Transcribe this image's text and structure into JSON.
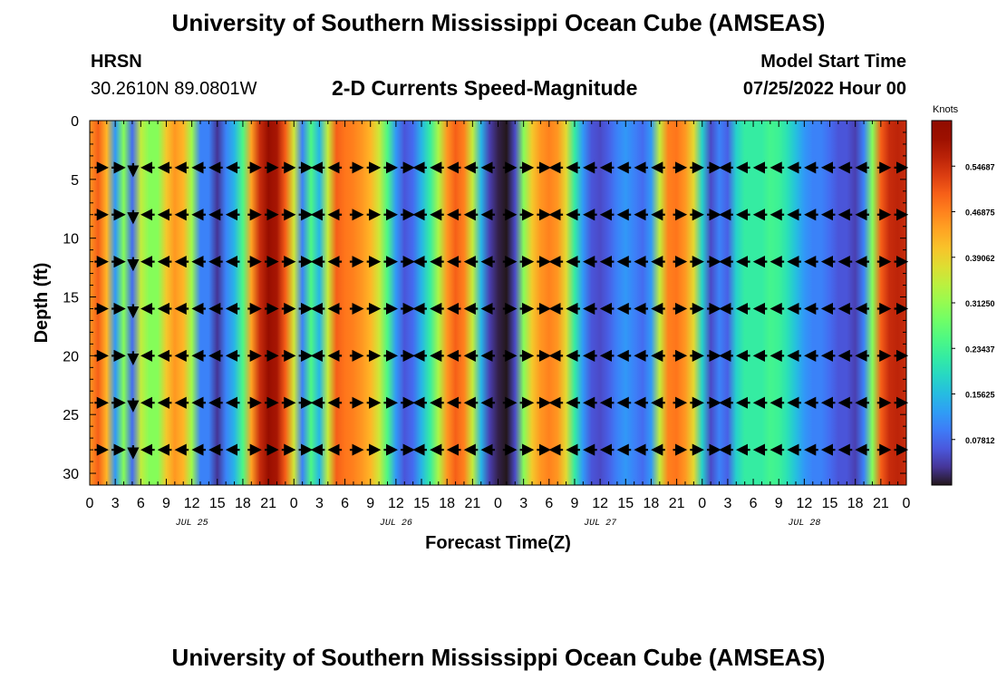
{
  "header": {
    "title": "University of Southern Mississippi Ocean Cube (AMSEAS)",
    "station": "HRSN",
    "coords": "30.2610N  89.0801W",
    "plot_title": "2-D Currents Speed-Magnitude",
    "model_start_label": "Model Start Time",
    "model_start_value": "07/25/2022 Hour 00"
  },
  "footer": {
    "title": "University of Southern Mississippi Ocean Cube (AMSEAS)"
  },
  "chart_data": {
    "type": "heatmap",
    "title": "2-D Currents Speed-Magnitude",
    "xlabel": "Forecast Time(Z)",
    "ylabel": "Depth (ft)",
    "xlim": [
      0,
      96
    ],
    "ylim": [
      31,
      0
    ],
    "x_tick_labels": [
      "0",
      "3",
      "6",
      "9",
      "12",
      "15",
      "18",
      "21",
      "0",
      "3",
      "6",
      "9",
      "12",
      "15",
      "18",
      "21",
      "0",
      "3",
      "6",
      "9",
      "12",
      "15",
      "18",
      "21",
      "0",
      "3",
      "6",
      "9",
      "12",
      "15",
      "18",
      "21",
      "0"
    ],
    "y_ticks": [
      0,
      5,
      10,
      15,
      20,
      25,
      30
    ],
    "date_labels": [
      {
        "label": "JUL 25",
        "hour": 12
      },
      {
        "label": "JUL 26",
        "hour": 36
      },
      {
        "label": "JUL 27",
        "hour": 60
      },
      {
        "label": "JUL 28",
        "hour": 84
      }
    ],
    "colorbar": {
      "unit": "Knots",
      "min": 0.0,
      "max": 0.625,
      "tick_values": [
        0.54687,
        0.46875,
        0.39062,
        0.3125,
        0.23437,
        0.15625,
        0.07812
      ],
      "tick_labels": [
        "0.54687",
        "0.46875",
        "0.39062",
        "0.31250",
        "0.23437",
        "0.15625",
        "0.07812"
      ],
      "colormap": "turbo"
    },
    "speed_profile_knots": [
      [
        0,
        0.45
      ],
      [
        1,
        0.5
      ],
      [
        2,
        0.42
      ],
      [
        3,
        0.12
      ],
      [
        4,
        0.3
      ],
      [
        5,
        0.08
      ],
      [
        6,
        0.35
      ],
      [
        7,
        0.3
      ],
      [
        8,
        0.3
      ],
      [
        9,
        0.4
      ],
      [
        10,
        0.45
      ],
      [
        11,
        0.42
      ],
      [
        12,
        0.32
      ],
      [
        13,
        0.1
      ],
      [
        14,
        0.1
      ],
      [
        15,
        0.03
      ],
      [
        16,
        0.1
      ],
      [
        17,
        0.15
      ],
      [
        18,
        0.25
      ],
      [
        19,
        0.44
      ],
      [
        20,
        0.55
      ],
      [
        21,
        0.6
      ],
      [
        22,
        0.58
      ],
      [
        23,
        0.5
      ],
      [
        24,
        0.36
      ],
      [
        25,
        0.1
      ],
      [
        26,
        0.25
      ],
      [
        27,
        0.15
      ],
      [
        28,
        0.35
      ],
      [
        29,
        0.5
      ],
      [
        30,
        0.48
      ],
      [
        31,
        0.47
      ],
      [
        32,
        0.45
      ],
      [
        33,
        0.42
      ],
      [
        34,
        0.36
      ],
      [
        35,
        0.25
      ],
      [
        36,
        0.12
      ],
      [
        37,
        0.06
      ],
      [
        38,
        0.08
      ],
      [
        39,
        0.15
      ],
      [
        40,
        0.22
      ],
      [
        41,
        0.33
      ],
      [
        42,
        0.45
      ],
      [
        43,
        0.5
      ],
      [
        44,
        0.47
      ],
      [
        45,
        0.35
      ],
      [
        46,
        0.15
      ],
      [
        47,
        0.04
      ],
      [
        48,
        0.01
      ],
      [
        49,
        0.0
      ],
      [
        50,
        0.05
      ],
      [
        51,
        0.3
      ],
      [
        52,
        0.4
      ],
      [
        53,
        0.45
      ],
      [
        54,
        0.47
      ],
      [
        55,
        0.45
      ],
      [
        56,
        0.38
      ],
      [
        57,
        0.22
      ],
      [
        58,
        0.12
      ],
      [
        59,
        0.06
      ],
      [
        60,
        0.05
      ],
      [
        61,
        0.07
      ],
      [
        62,
        0.1
      ],
      [
        63,
        0.12
      ],
      [
        64,
        0.1
      ],
      [
        65,
        0.08
      ],
      [
        66,
        0.12
      ],
      [
        67,
        0.35
      ],
      [
        68,
        0.47
      ],
      [
        69,
        0.48
      ],
      [
        70,
        0.45
      ],
      [
        71,
        0.38
      ],
      [
        72,
        0.18
      ],
      [
        73,
        0.05
      ],
      [
        74,
        0.1
      ],
      [
        75,
        0.07
      ],
      [
        76,
        0.18
      ],
      [
        77,
        0.22
      ],
      [
        78,
        0.22
      ],
      [
        79,
        0.22
      ],
      [
        80,
        0.24
      ],
      [
        81,
        0.23
      ],
      [
        82,
        0.2
      ],
      [
        83,
        0.16
      ],
      [
        84,
        0.12
      ],
      [
        85,
        0.1
      ],
      [
        86,
        0.1
      ],
      [
        87,
        0.08
      ],
      [
        88,
        0.06
      ],
      [
        89,
        0.06
      ],
      [
        90,
        0.04
      ],
      [
        91,
        0.1
      ],
      [
        92,
        0.3
      ],
      [
        93,
        0.5
      ],
      [
        94,
        0.55
      ],
      [
        95,
        0.56
      ],
      [
        96,
        0.55
      ]
    ],
    "vector_depths_ft": [
      4,
      8,
      12,
      16,
      20,
      24,
      28
    ],
    "vector_hours": [
      0,
      2,
      4,
      6,
      8,
      10,
      12,
      14,
      16,
      18,
      20,
      22,
      24,
      26,
      28,
      30,
      32,
      34,
      36,
      38,
      40,
      42,
      44,
      46,
      48,
      50,
      52,
      54,
      56,
      58,
      60,
      62,
      64,
      66,
      68,
      70,
      72,
      74,
      76,
      78,
      80,
      82,
      84,
      86,
      88,
      90,
      92,
      94
    ],
    "vector_direction": [
      "E",
      "E",
      "S",
      "W",
      "W",
      "W",
      "W",
      "W",
      "W",
      "E",
      "E",
      "E",
      "E",
      "W",
      "W",
      "E",
      "E",
      "E",
      "E",
      "W",
      "W",
      "W",
      "W",
      "W",
      "E",
      "E",
      "E",
      "W",
      "W",
      "W",
      "W",
      "W",
      "W",
      "W",
      "E",
      "E",
      "E",
      "W",
      "W",
      "W",
      "W",
      "W",
      "W",
      "W",
      "W",
      "W",
      "E",
      "E"
    ]
  }
}
